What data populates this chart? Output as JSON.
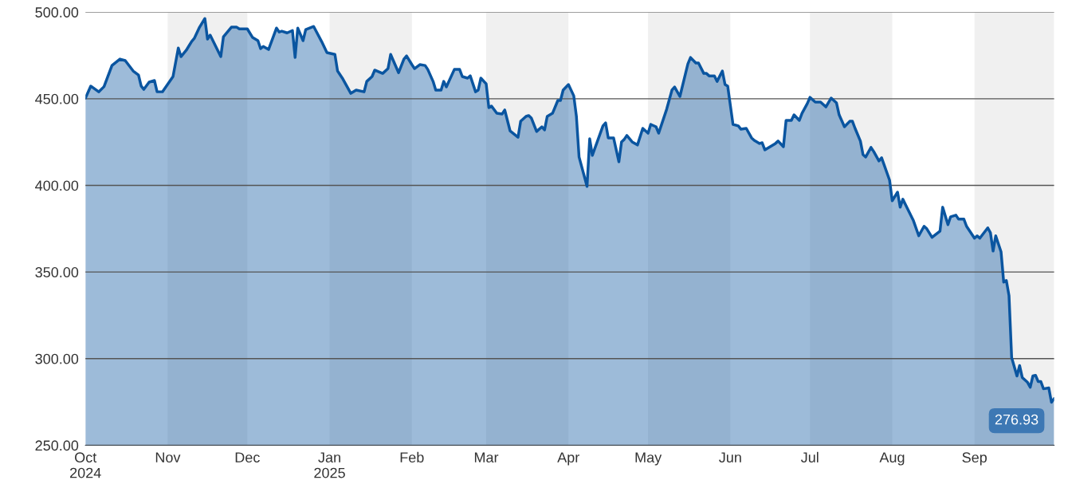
{
  "chart_data": {
    "type": "area",
    "x": [
      "2024-10-01",
      "2024-10-03",
      "2024-10-06",
      "2024-10-08",
      "2024-10-11",
      "2024-10-14",
      "2024-10-16",
      "2024-10-19",
      "2024-10-21",
      "2024-10-22",
      "2024-10-23",
      "2024-10-25",
      "2024-10-27",
      "2024-10-28",
      "2024-10-30",
      "2024-11-03",
      "2024-11-05",
      "2024-11-06",
      "2024-11-08",
      "2024-11-10",
      "2024-11-11",
      "2024-11-13",
      "2024-11-15",
      "2024-11-16",
      "2024-11-17",
      "2024-11-21",
      "2024-11-22",
      "2024-11-25",
      "2024-11-27",
      "2024-11-28",
      "2024-12-01",
      "2024-12-03",
      "2024-12-05",
      "2024-12-06",
      "2024-12-07",
      "2024-12-09",
      "2024-12-12",
      "2024-12-13",
      "2024-12-14",
      "2024-12-16",
      "2024-12-18",
      "2024-12-19",
      "2024-12-20",
      "2024-12-22",
      "2024-12-23",
      "2024-12-26",
      "2024-12-29",
      "2024-12-31",
      "2025-01-03",
      "2025-01-04",
      "2025-01-06",
      "2025-01-07",
      "2025-01-09",
      "2025-01-11",
      "2025-01-14",
      "2025-01-15",
      "2025-01-17",
      "2025-01-18",
      "2025-01-21",
      "2025-01-23",
      "2025-01-24",
      "2025-01-27",
      "2025-01-29",
      "2025-01-30",
      "2025-02-01",
      "2025-02-02",
      "2025-02-04",
      "2025-02-06",
      "2025-02-07",
      "2025-02-09",
      "2025-02-10",
      "2025-02-12",
      "2025-02-13",
      "2025-02-14",
      "2025-02-17",
      "2025-02-19",
      "2025-02-20",
      "2025-02-22",
      "2025-02-23",
      "2025-02-25",
      "2025-02-26",
      "2025-02-27",
      "2025-03-01",
      "2025-03-02",
      "2025-03-03",
      "2025-03-05",
      "2025-03-07",
      "2025-03-08",
      "2025-03-10",
      "2025-03-13",
      "2025-03-14",
      "2025-03-16",
      "2025-03-17",
      "2025-03-18",
      "2025-03-20",
      "2025-03-22",
      "2025-03-23",
      "2025-03-24",
      "2025-03-26",
      "2025-03-28",
      "2025-03-29",
      "2025-03-30",
      "2025-04-01",
      "2025-04-03",
      "2025-04-04",
      "2025-04-05",
      "2025-04-08",
      "2025-04-09",
      "2025-04-10",
      "2025-04-14",
      "2025-04-15",
      "2025-04-16",
      "2025-04-18",
      "2025-04-20",
      "2025-04-21",
      "2025-04-22",
      "2025-04-23",
      "2025-04-25",
      "2025-04-27",
      "2025-04-29",
      "2025-05-01",
      "2025-05-02",
      "2025-05-04",
      "2025-05-05",
      "2025-05-08",
      "2025-05-10",
      "2025-05-11",
      "2025-05-13",
      "2025-05-16",
      "2025-05-17",
      "2025-05-19",
      "2025-05-20",
      "2025-05-22",
      "2025-05-23",
      "2025-05-24",
      "2025-05-26",
      "2025-05-27",
      "2025-05-29",
      "2025-05-30",
      "2025-05-31",
      "2025-06-02",
      "2025-06-04",
      "2025-06-05",
      "2025-06-07",
      "2025-06-09",
      "2025-06-10",
      "2025-06-12",
      "2025-06-13",
      "2025-06-14",
      "2025-06-18",
      "2025-06-19",
      "2025-06-21",
      "2025-06-22",
      "2025-06-24",
      "2025-06-25",
      "2025-06-27",
      "2025-06-28",
      "2025-06-30",
      "2025-07-01",
      "2025-07-03",
      "2025-07-05",
      "2025-07-07",
      "2025-07-09",
      "2025-07-11",
      "2025-07-12",
      "2025-07-14",
      "2025-07-16",
      "2025-07-17",
      "2025-07-18",
      "2025-07-20",
      "2025-07-21",
      "2025-07-22",
      "2025-07-24",
      "2025-07-25",
      "2025-07-27",
      "2025-07-28",
      "2025-07-31",
      "2025-08-01",
      "2025-08-03",
      "2025-08-04",
      "2025-08-05",
      "2025-08-09",
      "2025-08-11",
      "2025-08-13",
      "2025-08-14",
      "2025-08-16",
      "2025-08-19",
      "2025-08-20",
      "2025-08-22",
      "2025-08-23",
      "2025-08-25",
      "2025-08-26",
      "2025-08-28",
      "2025-08-29",
      "2025-09-01",
      "2025-09-02",
      "2025-09-03",
      "2025-09-06",
      "2025-09-07",
      "2025-09-08",
      "2025-09-09",
      "2025-09-11",
      "2025-09-12",
      "2025-09-13",
      "2025-09-14",
      "2025-09-15",
      "2025-09-17",
      "2025-09-18",
      "2025-09-19",
      "2025-09-21",
      "2025-09-22",
      "2025-09-23",
      "2025-09-24",
      "2025-09-25",
      "2025-09-26",
      "2025-09-27",
      "2025-09-29",
      "2025-09-30",
      "2025-10-01"
    ],
    "series": [
      {
        "color": "#0a55a0",
        "values": [
          450.4,
          457.3,
          454,
          457,
          469.2,
          472.9,
          472,
          466,
          463.7,
          457.3,
          455.4,
          459.6,
          460.5,
          454,
          454,
          462.8,
          479.3,
          474.3,
          478,
          483,
          484.8,
          491.3,
          496.3,
          484.4,
          486.7,
          474.3,
          485.8,
          491.3,
          491.3,
          490.3,
          490.3,
          485.3,
          483.5,
          478.9,
          480.2,
          478.4,
          490.8,
          488.5,
          489,
          488,
          489.4,
          473.8,
          490.8,
          483.5,
          489.9,
          491.7,
          483,
          476.6,
          475.6,
          466,
          461.4,
          458.6,
          453.1,
          455,
          454,
          460,
          462.8,
          466.5,
          464.6,
          467.4,
          475.6,
          465,
          472.9,
          474.7,
          469.7,
          467.4,
          469.7,
          469.2,
          466.9,
          460,
          455,
          455,
          460,
          456.8,
          466.9,
          466.9,
          462.8,
          461.9,
          463.2,
          454,
          455,
          461.9,
          458.6,
          444.9,
          445.8,
          441.6,
          441.2,
          443.5,
          431.5,
          427.8,
          437,
          439.8,
          440.3,
          438.9,
          431.1,
          433.8,
          432,
          439.8,
          441.6,
          449,
          449,
          455,
          458.2,
          451.7,
          439.8,
          416.4,
          399.4,
          426.9,
          417.3,
          434.3,
          436.1,
          427.4,
          427.4,
          413.6,
          425.1,
          426.5,
          428.8,
          425.1,
          423.3,
          432.9,
          430.1,
          435.2,
          433.8,
          430.1,
          443.9,
          455,
          456.8,
          451.3,
          470.1,
          473.8,
          470.6,
          470.6,
          464.6,
          464.6,
          463.2,
          463.2,
          460,
          466,
          458.2,
          457.3,
          435.2,
          434.3,
          432.4,
          432.9,
          427.4,
          426,
          424.2,
          424.6,
          420.5,
          424.2,
          425.6,
          422.3,
          437.5,
          437.5,
          440.7,
          437.5,
          441.6,
          447.2,
          450.8,
          448.1,
          448.1,
          445.3,
          450.4,
          447.6,
          440.7,
          433.8,
          437,
          437,
          432.9,
          425.6,
          417.7,
          416.4,
          421.9,
          419.6,
          414.1,
          415.9,
          403,
          391.1,
          396.1,
          387.4,
          392,
          379.6,
          370.9,
          376.4,
          375,
          370,
          373.6,
          387.4,
          377.3,
          381.9,
          382.8,
          380.5,
          380.5,
          376.4,
          369.5,
          370.9,
          369.5,
          375.5,
          372.7,
          362.1,
          370.9,
          361.7,
          344.2,
          345.1,
          336.4,
          300.6,
          290,
          296,
          289.1,
          286.3,
          283.5,
          290,
          290.4,
          286.8,
          286.8,
          282.6,
          283.1,
          274.8,
          276.93
        ]
      }
    ],
    "xlim": [
      "2024-10-01",
      "2025-10-01"
    ],
    "xticks": [
      {
        "value": "2024-10-01",
        "label": "Oct\n2024"
      },
      {
        "value": "2024-11-01",
        "label": "Nov"
      },
      {
        "value": "2024-12-01",
        "label": "Dec"
      },
      {
        "value": "2025-01-01",
        "label": "Jan\n2025"
      },
      {
        "value": "2025-02-01",
        "label": "Feb"
      },
      {
        "value": "2025-03-01",
        "label": "Mar"
      },
      {
        "value": "2025-04-01",
        "label": "Apr"
      },
      {
        "value": "2025-05-01",
        "label": "May"
      },
      {
        "value": "2025-06-01",
        "label": "Jun"
      },
      {
        "value": "2025-07-01",
        "label": "Jul"
      },
      {
        "value": "2025-08-01",
        "label": "Aug"
      },
      {
        "value": "2025-09-01",
        "label": "Sep"
      }
    ],
    "ylim": [
      250,
      500
    ],
    "yticks": [
      {
        "value": 250,
        "label": "250.00"
      },
      {
        "value": 300,
        "label": "300.00"
      },
      {
        "value": 350,
        "label": "350.00"
      },
      {
        "value": 400,
        "label": "400.00"
      },
      {
        "value": 450,
        "label": "450.00"
      },
      {
        "value": 500,
        "label": "500.00"
      }
    ],
    "grid": "y",
    "bands": [
      {
        "axis": "x",
        "from": "2024-11-01",
        "to": "2024-12-01",
        "color": "#f0f0f0"
      },
      {
        "axis": "x",
        "from": "2025-01-01",
        "to": "2025-02-01",
        "color": "#f0f0f0"
      },
      {
        "axis": "x",
        "from": "2025-03-01",
        "to": "2025-04-01",
        "color": "#f0f0f0"
      },
      {
        "axis": "x",
        "from": "2025-05-01",
        "to": "2025-06-01",
        "color": "#f0f0f0"
      },
      {
        "axis": "x",
        "from": "2025-07-01",
        "to": "2025-08-01",
        "color": "#f0f0f0"
      },
      {
        "axis": "x",
        "from": "2025-09-01",
        "to": "2025-10-01",
        "color": "#f0f0f0"
      }
    ],
    "annotations": [
      {
        "text": "276.93",
        "x": "2025-10-01",
        "y": 276.93
      }
    ]
  }
}
